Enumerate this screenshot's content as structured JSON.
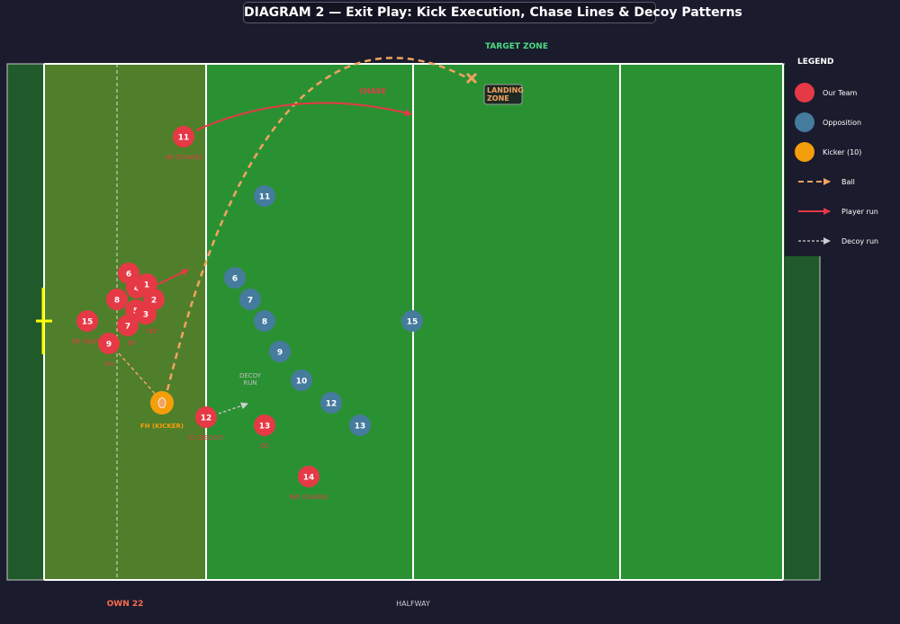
{
  "title": "DIAGRAM 2 — Exit Play: Kick Execution, Chase Lines & Decoy Patterns",
  "zones": {
    "target": "TARGET ZONE",
    "own22": "OWN 22",
    "halfway": "HALFWAY",
    "landing_line1": "LANDING",
    "landing_line2": "ZONE",
    "chase": "CHASE",
    "decoy_line1": "DECOY",
    "decoy_line2": "RUN"
  },
  "legend": {
    "title": "LEGEND",
    "items": [
      {
        "label": "Our Team",
        "kind": "circle",
        "color": "#e63946"
      },
      {
        "label": "Opposition",
        "kind": "circle",
        "color": "#457b9d"
      },
      {
        "label": "Kicker (10)",
        "kind": "circle",
        "color": "#f59e0b"
      },
      {
        "label": "Ball",
        "kind": "ball"
      },
      {
        "label": "Player run",
        "kind": "run"
      },
      {
        "label": "Decoy run",
        "kind": "decoy"
      }
    ]
  },
  "colors": {
    "our_team": "#e63946",
    "opposition": "#457b9d",
    "kicker": "#f59e0b",
    "ball": "#f4a261",
    "field": "#2a9133",
    "own_zone": "#4f7f2a",
    "in_goal": "#205a2a",
    "target_text": "#4ade80",
    "own22_text": "#ff6b4a"
  },
  "our_team": [
    {
      "num": "11",
      "role": "LW (CHASE)"
    },
    {
      "num": "6",
      "role": ""
    },
    {
      "num": "4",
      "role": ""
    },
    {
      "num": "1",
      "role": ""
    },
    {
      "num": "8",
      "role": ""
    },
    {
      "num": "2",
      "role": ""
    },
    {
      "num": "5",
      "role": ""
    },
    {
      "num": "3",
      "role": "TKP"
    },
    {
      "num": "7",
      "role": "BF"
    },
    {
      "num": "15",
      "role": "FB (WAIT)"
    },
    {
      "num": "9",
      "role": "SH"
    },
    {
      "num": "12",
      "role": "IC (DECOY)"
    },
    {
      "num": "13",
      "role": "OC"
    },
    {
      "num": "14",
      "role": "RW (CHASE)"
    }
  ],
  "kicker": {
    "num": "",
    "role": "FH (KICKER)"
  },
  "opposition": [
    "11",
    "6",
    "7",
    "8",
    "9",
    "10",
    "12",
    "13",
    "15"
  ]
}
